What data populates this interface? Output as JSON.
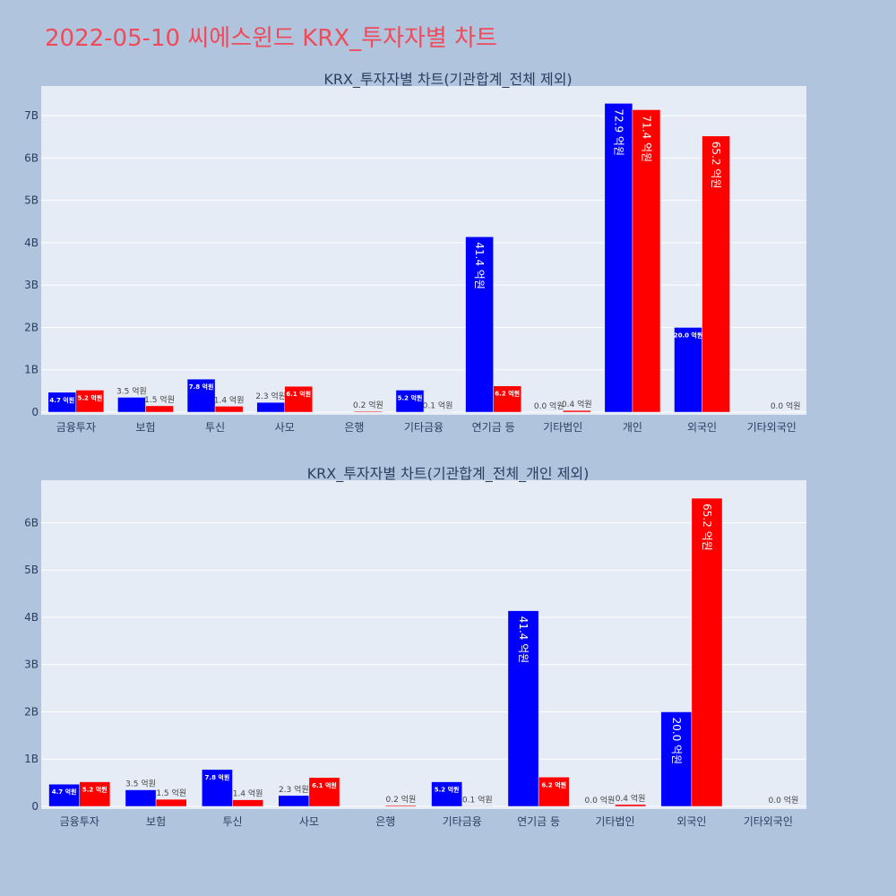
{
  "page": {
    "title": "2022-05-10 씨에스윈드 KRX_투자자별 차트"
  },
  "colors": {
    "buy": "#0000ff",
    "sell": "#ff0000",
    "plot_bg": "#e5ecf6",
    "page_bg": "#b0c4de",
    "title": "#ef4b5a"
  },
  "chart_data": [
    {
      "type": "bar",
      "title": "KRX_투자자별 차트(기관합계_전체 제외)",
      "categories": [
        "금융투자",
        "보험",
        "투신",
        "사모",
        "은행",
        "기타금융",
        "연기금 등",
        "기타법인",
        "개인",
        "외국인",
        "기타외국인"
      ],
      "series": [
        {
          "values": [
            0.47,
            0.35,
            0.78,
            0.23,
            0,
            0.52,
            4.14,
            0,
            7.29,
            2.0,
            0
          ],
          "labels": [
            "4.7 억원",
            "3.5 억원",
            "7.8 억원",
            "2.3 억원",
            "",
            "5.2 억원",
            "41.4 억원",
            "0.0 억원",
            "72.9 억원",
            "20.0 억원",
            ""
          ]
        },
        {
          "values": [
            0.52,
            0.15,
            0.14,
            0.61,
            0.02,
            0.01,
            0.62,
            0.04,
            7.14,
            6.52,
            0
          ],
          "labels": [
            "5.2 억원",
            "1.5 억원",
            "1.4 억원",
            "6.1 억원",
            "0.2 억원",
            "0.1 억원",
            "6.2 억원",
            "0.4 억원",
            "71.4 억원",
            "65.2 억원",
            "0.0 억원"
          ]
        }
      ],
      "ylim": [
        0,
        7.7
      ],
      "yticks": [
        0,
        1,
        2,
        3,
        4,
        5,
        6,
        7
      ],
      "ytick_labels": [
        "0",
        "1B",
        "2B",
        "3B",
        "4B",
        "5B",
        "6B",
        "7B"
      ],
      "grid": true,
      "legend": "none"
    },
    {
      "type": "bar",
      "title": "KRX_투자자별 차트(기관합계_전체_개인 제외)",
      "categories": [
        "금융투자",
        "보험",
        "투신",
        "사모",
        "은행",
        "기타금융",
        "연기금 등",
        "기타법인",
        "외국인",
        "기타외국인"
      ],
      "series": [
        {
          "values": [
            0.47,
            0.35,
            0.78,
            0.23,
            0,
            0.52,
            4.14,
            0,
            2.0,
            0
          ],
          "labels": [
            "4.7 억원",
            "3.5 억원",
            "7.8 억원",
            "2.3 억원",
            "",
            "5.2 억원",
            "41.4 억원",
            "0.0 억원",
            "20.0 억원",
            ""
          ]
        },
        {
          "values": [
            0.52,
            0.15,
            0.14,
            0.61,
            0.02,
            0.01,
            0.62,
            0.04,
            6.52,
            0
          ],
          "labels": [
            "5.2 억원",
            "1.5 억원",
            "1.4 억원",
            "6.1 억원",
            "0.2 억원",
            "0.1 억원",
            "6.2 억원",
            "0.4 억원",
            "65.2 억원",
            "0.0 억원"
          ]
        }
      ],
      "ylim": [
        0,
        6.9
      ],
      "yticks": [
        0,
        1,
        2,
        3,
        4,
        5,
        6
      ],
      "ytick_labels": [
        "0",
        "1B",
        "2B",
        "3B",
        "4B",
        "5B",
        "6B"
      ],
      "grid": true,
      "legend": "none"
    }
  ]
}
